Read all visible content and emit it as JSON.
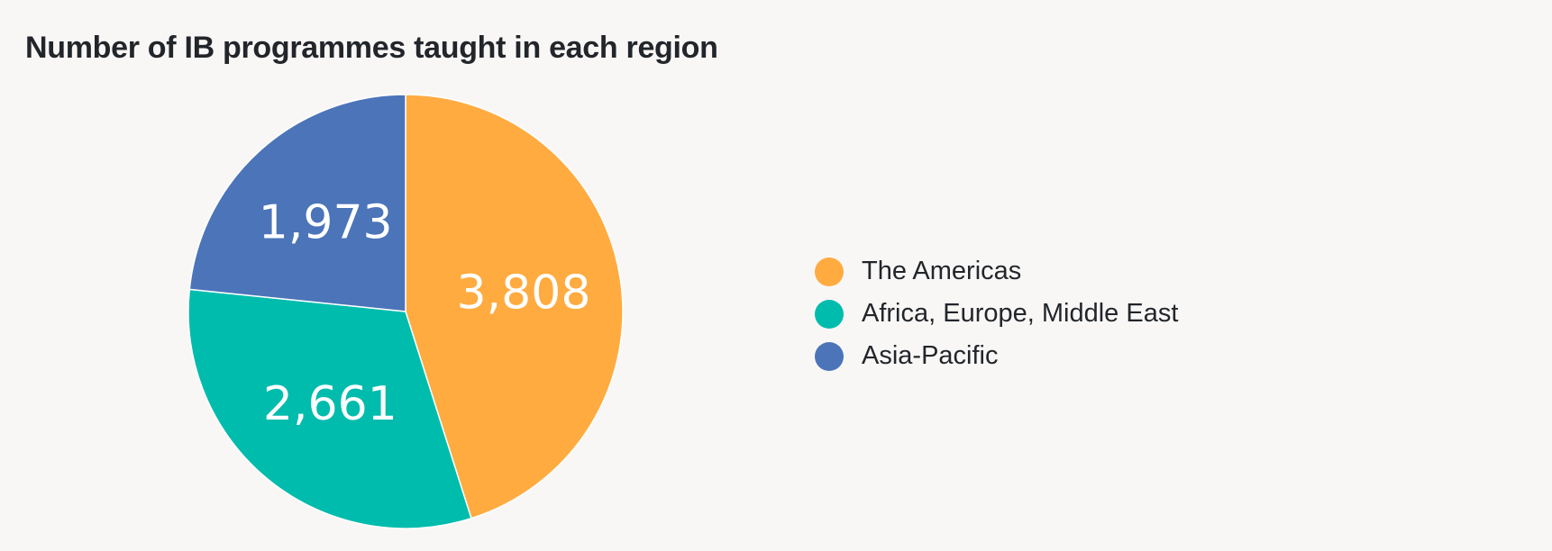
{
  "chart_data": {
    "type": "pie",
    "title": "Number of IB programmes taught in each region",
    "start_angle_deg": 0,
    "direction": "clockwise",
    "legend_position": "right",
    "slices": [
      {
        "name": "The Americas",
        "value": 3808,
        "label": "3,808",
        "color": "#ffab40"
      },
      {
        "name": "Africa, Europe, Middle East",
        "value": 2661,
        "label": "2,661",
        "color": "#00bcad"
      },
      {
        "name": "Asia-Pacific",
        "value": 1973,
        "label": "1,973",
        "color": "#4b74b9"
      }
    ]
  }
}
